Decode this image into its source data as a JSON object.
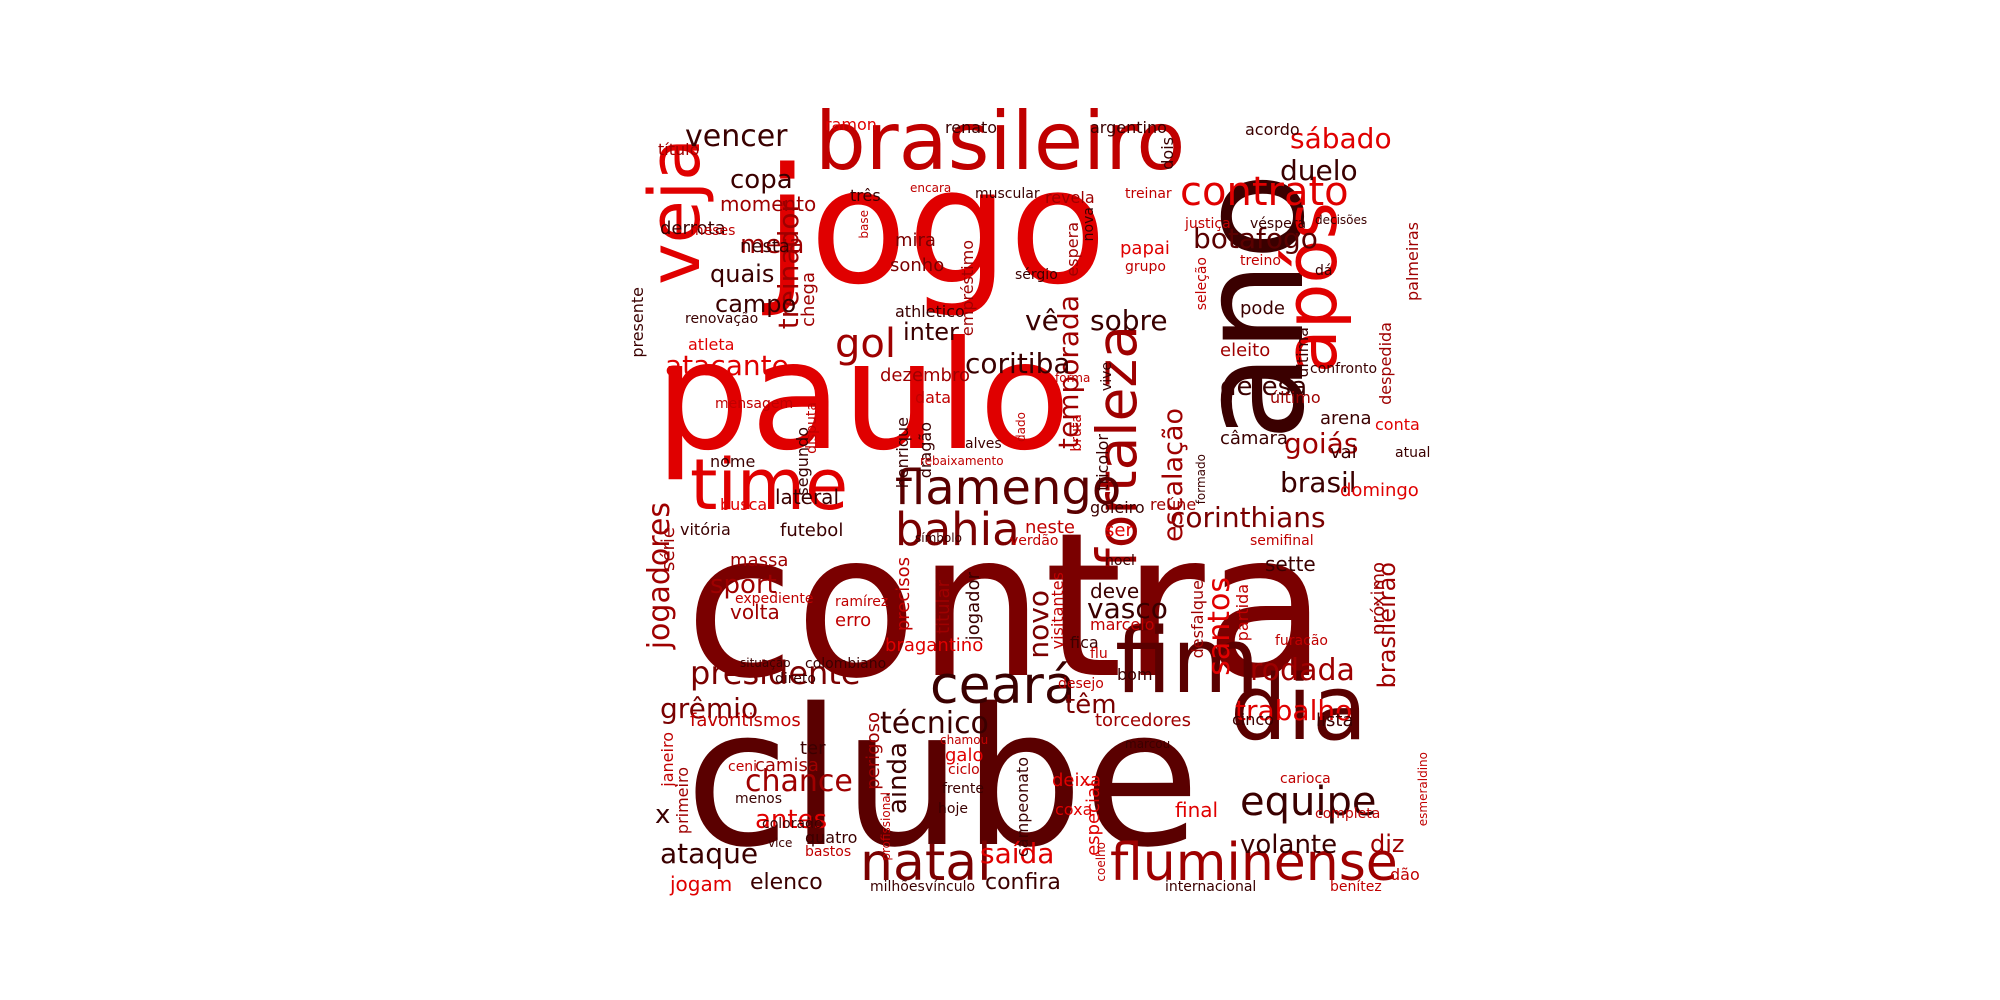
{
  "palette": [
    "#e00000",
    "#c00000",
    "#9e0000",
    "#7a0000",
    "#5a0000",
    "#3a0000",
    "#1a0000"
  ],
  "words": [
    {
      "text": "contra",
      "color": "#7a0000"
    },
    {
      "text": "clube",
      "color": "#5a0000"
    },
    {
      "text": "jogo",
      "color": "#e00000"
    },
    {
      "text": "paulo",
      "color": "#e00000"
    },
    {
      "text": "ano",
      "color": "#3a0000"
    },
    {
      "text": "brasileiro",
      "color": "#c00000"
    },
    {
      "text": "fim",
      "color": "#5a0000"
    },
    {
      "text": "dia",
      "color": "#5a0000"
    },
    {
      "text": "time",
      "color": "#e00000"
    },
    {
      "text": "veja",
      "color": "#e00000"
    },
    {
      "text": "após",
      "color": "#e00000"
    },
    {
      "text": "contrato",
      "color": "#e00000"
    },
    {
      "text": "fortaleza",
      "color": "#9e0000"
    },
    {
      "text": "flamengo",
      "color": "#5a0000"
    },
    {
      "text": "natal",
      "color": "#7a0000"
    },
    {
      "text": "fluminense",
      "color": "#9e0000"
    },
    {
      "text": "ceará",
      "color": "#3a0000"
    },
    {
      "text": "bahia",
      "color": "#7a0000"
    },
    {
      "text": "equipe",
      "color": "#3a0000"
    },
    {
      "text": "gol",
      "color": "#9e0000"
    },
    {
      "text": "presidente",
      "color": "#7a0000"
    },
    {
      "text": "corinthians",
      "color": "#7a0000"
    },
    {
      "text": "treinador",
      "color": "#9e0000"
    },
    {
      "text": "temporada",
      "color": "#9e0000"
    },
    {
      "text": "atacante",
      "color": "#e00000"
    },
    {
      "text": "técnico",
      "color": "#3a0000"
    },
    {
      "text": "santos",
      "color": "#e00000"
    },
    {
      "text": "rodada",
      "color": "#9e0000"
    },
    {
      "text": "jogadores",
      "color": "#9e0000"
    },
    {
      "text": "escalação",
      "color": "#9e0000"
    },
    {
      "text": "sábado",
      "color": "#e00000"
    },
    {
      "text": "botafogo",
      "color": "#5a0000"
    },
    {
      "text": "vencer",
      "color": "#3a0000"
    },
    {
      "text": "duelo",
      "color": "#3a0000"
    },
    {
      "text": "sobre",
      "color": "#3a0000"
    },
    {
      "text": "coritiba",
      "color": "#3a0000"
    },
    {
      "text": "goiás",
      "color": "#9e0000"
    },
    {
      "text": "brasil",
      "color": "#3a0000"
    },
    {
      "text": "novo",
      "color": "#7a0000"
    },
    {
      "text": "vasco",
      "color": "#3a0000"
    },
    {
      "text": "trabalho",
      "color": "#e00000"
    },
    {
      "text": "grêmio",
      "color": "#7a0000"
    },
    {
      "text": "chance",
      "color": "#9e0000"
    },
    {
      "text": "ataque",
      "color": "#3a0000"
    },
    {
      "text": "saída",
      "color": "#e00000"
    },
    {
      "text": "volante",
      "color": "#3a0000"
    },
    {
      "text": "copa",
      "color": "#3a0000"
    },
    {
      "text": "meia",
      "color": "#9e0000"
    },
    {
      "text": "quais",
      "color": "#3a0000"
    },
    {
      "text": "campo",
      "color": "#3a0000"
    },
    {
      "text": "inter",
      "color": "#3a0000"
    },
    {
      "text": "vê",
      "color": "#3a0000"
    },
    {
      "text": "defesa",
      "color": "#3a0000"
    },
    {
      "text": "sport",
      "color": "#9e0000"
    },
    {
      "text": "volta",
      "color": "#9e0000"
    },
    {
      "text": "têm",
      "color": "#7a0000"
    },
    {
      "text": "deve",
      "color": "#3a0000"
    },
    {
      "text": "ainda",
      "color": "#3a0000"
    },
    {
      "text": "brasileirão",
      "color": "#9e0000"
    },
    {
      "text": "diz",
      "color": "#9e0000"
    },
    {
      "text": "elenco",
      "color": "#3a0000"
    },
    {
      "text": "confira",
      "color": "#3a0000"
    },
    {
      "text": "antes",
      "color": "#e00000"
    },
    {
      "text": "x",
      "color": "#3a0000"
    },
    {
      "text": "jogam",
      "color": "#e00000"
    },
    {
      "text": "lateral",
      "color": "#3a0000"
    },
    {
      "text": "momento",
      "color": "#9e0000"
    },
    {
      "text": "derrota",
      "color": "#3a0000"
    },
    {
      "text": "nesta",
      "color": "#3a0000"
    },
    {
      "text": "título",
      "color": "#9e0000"
    },
    {
      "text": "ramon",
      "color": "#e00000"
    },
    {
      "text": "renato",
      "color": "#3a0000"
    },
    {
      "text": "argentino",
      "color": "#3a0000"
    },
    {
      "text": "acordo",
      "color": "#3a0000"
    },
    {
      "text": "dois",
      "color": "#3a0000"
    },
    {
      "text": "três",
      "color": "#3a0000"
    },
    {
      "text": "encara",
      "color": "#c00000"
    },
    {
      "text": "muscular",
      "color": "#3a0000"
    },
    {
      "text": "revela",
      "color": "#9e0000"
    },
    {
      "text": "treinar",
      "color": "#c00000"
    },
    {
      "text": "nova",
      "color": "#3a0000"
    },
    {
      "text": "empréstimo",
      "color": "#9e0000"
    },
    {
      "text": "espera",
      "color": "#9e0000"
    },
    {
      "text": "justiça",
      "color": "#c00000"
    },
    {
      "text": "véspera",
      "color": "#3a0000"
    },
    {
      "text": "decisões",
      "color": "#3a0000"
    },
    {
      "text": "palmeiras",
      "color": "#9e0000"
    },
    {
      "text": "base",
      "color": "#c00000"
    },
    {
      "text": "meses",
      "color": "#c00000"
    },
    {
      "text": "mira",
      "color": "#7a0000"
    },
    {
      "text": "sonho",
      "color": "#7a0000"
    },
    {
      "text": "papai",
      "color": "#e00000"
    },
    {
      "text": "grupo",
      "color": "#c00000"
    },
    {
      "text": "seleção",
      "color": "#c00000"
    },
    {
      "text": "treino",
      "color": "#c00000"
    },
    {
      "text": "dá",
      "color": "#3a0000"
    },
    {
      "text": "presente",
      "color": "#3a0000"
    },
    {
      "text": "chega",
      "color": "#9e0000"
    },
    {
      "text": "sérgio",
      "color": "#3a0000"
    },
    {
      "text": "renovação",
      "color": "#3a0000"
    },
    {
      "text": "athletico",
      "color": "#3a0000"
    },
    {
      "text": "pode",
      "color": "#3a0000"
    },
    {
      "text": "última",
      "color": "#3a0000"
    },
    {
      "text": "despedida",
      "color": "#9e0000"
    },
    {
      "text": "atleta",
      "color": "#e00000"
    },
    {
      "text": "eleito",
      "color": "#9e0000"
    },
    {
      "text": "vive",
      "color": "#3a0000"
    },
    {
      "text": "confronto",
      "color": "#3a0000"
    },
    {
      "text": "dezembro",
      "color": "#9e0000"
    },
    {
      "text": "forma",
      "color": "#c00000"
    },
    {
      "text": "data",
      "color": "#c00000"
    },
    {
      "text": "disputa",
      "color": "#c00000"
    },
    {
      "text": "mensagem",
      "color": "#c00000"
    },
    {
      "text": "henrique",
      "color": "#3a0000"
    },
    {
      "text": "dragão",
      "color": "#3a0000"
    },
    {
      "text": "dado",
      "color": "#c00000"
    },
    {
      "text": "bruta",
      "color": "#c00000"
    },
    {
      "text": "tricolor",
      "color": "#3a0000"
    },
    {
      "text": "último",
      "color": "#9e0000"
    },
    {
      "text": "arena",
      "color": "#3a0000"
    },
    {
      "text": "conta",
      "color": "#e00000"
    },
    {
      "text": "segundo",
      "color": "#3a0000"
    },
    {
      "text": "alves",
      "color": "#3a0000"
    },
    {
      "text": "câmara",
      "color": "#3a0000"
    },
    {
      "text": "nome",
      "color": "#3a0000"
    },
    {
      "text": "rebaixamento",
      "color": "#c00000"
    },
    {
      "text": "formado",
      "color": "#3a0000"
    },
    {
      "text": "vai",
      "color": "#3a0000"
    },
    {
      "text": "atual",
      "color": "#3a0000"
    },
    {
      "text": "busca",
      "color": "#e00000"
    },
    {
      "text": "série",
      "color": "#9e0000"
    },
    {
      "text": "goleiro",
      "color": "#3a0000"
    },
    {
      "text": "reúne",
      "color": "#9e0000"
    },
    {
      "text": "domingo",
      "color": "#e00000"
    },
    {
      "text": "vitória",
      "color": "#3a0000"
    },
    {
      "text": "futebol",
      "color": "#3a0000"
    },
    {
      "text": "neste",
      "color": "#c00000"
    },
    {
      "text": "ser",
      "color": "#e00000"
    },
    {
      "text": "símbolo",
      "color": "#3a0000"
    },
    {
      "text": "verdão",
      "color": "#c00000"
    },
    {
      "text": "semifinal",
      "color": "#c00000"
    },
    {
      "text": "massa",
      "color": "#9e0000"
    },
    {
      "text": "precisos",
      "color": "#c00000"
    },
    {
      "text": "noel",
      "color": "#3a0000"
    },
    {
      "text": "sette",
      "color": "#3a0000"
    },
    {
      "text": "próximo",
      "color": "#9e0000"
    },
    {
      "text": "expediente",
      "color": "#c00000"
    },
    {
      "text": "ramírez",
      "color": "#c00000"
    },
    {
      "text": "erro",
      "color": "#c00000"
    },
    {
      "text": "titular",
      "color": "#9e0000"
    },
    {
      "text": "jogador",
      "color": "#3a0000"
    },
    {
      "text": "visitantes",
      "color": "#c00000"
    },
    {
      "text": "desfalque",
      "color": "#9e0000"
    },
    {
      "text": "partida",
      "color": "#c00000"
    },
    {
      "text": "marcelo",
      "color": "#c00000"
    },
    {
      "text": "bragantino",
      "color": "#e00000"
    },
    {
      "text": "fica",
      "color": "#3a0000"
    },
    {
      "text": "furacão",
      "color": "#c00000"
    },
    {
      "text": "situação",
      "color": "#3a0000"
    },
    {
      "text": "colombiano",
      "color": "#3a0000"
    },
    {
      "text": "flu",
      "color": "#c00000"
    },
    {
      "text": "direto",
      "color": "#3a0000"
    },
    {
      "text": "bom",
      "color": "#3a0000"
    },
    {
      "text": "desejo",
      "color": "#c00000"
    },
    {
      "text": "favoritismos",
      "color": "#c00000"
    },
    {
      "text": "perigoso",
      "color": "#9e0000"
    },
    {
      "text": "torcedores",
      "color": "#9e0000"
    },
    {
      "text": "cinco",
      "color": "#3a0000"
    },
    {
      "text": "lista",
      "color": "#3a0000"
    },
    {
      "text": "chamou",
      "color": "#c00000"
    },
    {
      "text": "marcou",
      "color": "#3a0000"
    },
    {
      "text": "ter",
      "color": "#3a0000"
    },
    {
      "text": "galo",
      "color": "#e00000"
    },
    {
      "text": "ceni",
      "color": "#c00000"
    },
    {
      "text": "camisa",
      "color": "#9e0000"
    },
    {
      "text": "ciclo",
      "color": "#c00000"
    },
    {
      "text": "janeiro",
      "color": "#c00000"
    },
    {
      "text": "primeiro",
      "color": "#9e0000"
    },
    {
      "text": "profissional",
      "color": "#c00000"
    },
    {
      "text": "frente",
      "color": "#3a0000"
    },
    {
      "text": "campeonato",
      "color": "#3a0000"
    },
    {
      "text": "deixa",
      "color": "#e00000"
    },
    {
      "text": "especial",
      "color": "#e00000"
    },
    {
      "text": "carioca",
      "color": "#c00000"
    },
    {
      "text": "esmeraldino",
      "color": "#c00000"
    },
    {
      "text": "menos",
      "color": "#3a0000"
    },
    {
      "text": "hoje",
      "color": "#3a0000"
    },
    {
      "text": "coxa",
      "color": "#e00000"
    },
    {
      "text": "final",
      "color": "#e00000"
    },
    {
      "text": "completa",
      "color": "#c00000"
    },
    {
      "text": "colorado",
      "color": "#3a0000"
    },
    {
      "text": "vice",
      "color": "#3a0000"
    },
    {
      "text": "quatro",
      "color": "#3a0000"
    },
    {
      "text": "bastos",
      "color": "#c00000"
    },
    {
      "text": "coelho",
      "color": "#c00000"
    },
    {
      "text": "milhões",
      "color": "#3a0000"
    },
    {
      "text": "vínculo",
      "color": "#3a0000"
    },
    {
      "text": "internacional",
      "color": "#3a0000"
    },
    {
      "text": "benítez",
      "color": "#c00000"
    },
    {
      "text": "dão",
      "color": "#c00000"
    }
  ]
}
